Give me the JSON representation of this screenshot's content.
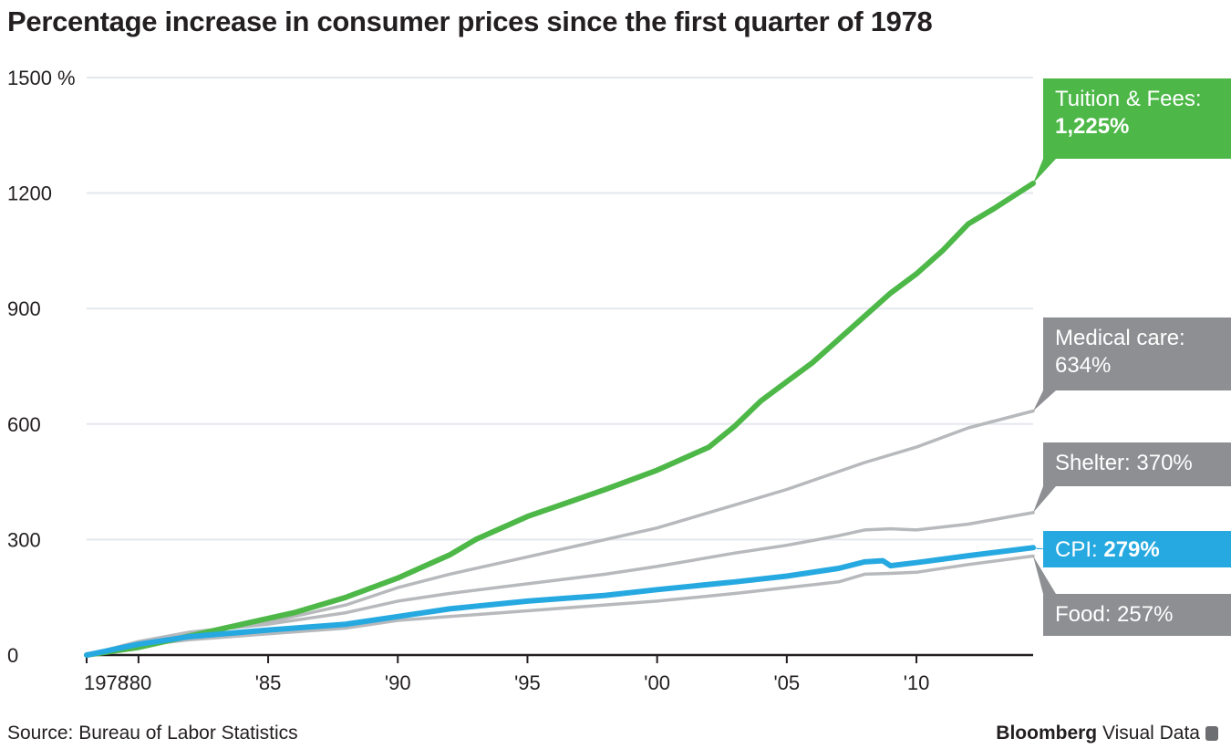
{
  "header": {
    "title": "Percentage increase in consumer prices since the first quarter of 1978"
  },
  "footer": {
    "source": "Source: Bureau of Labor Statistics",
    "brand_strong": "Bloomberg",
    "brand_rest": " Visual Data"
  },
  "colors": {
    "tuition": "#4db848",
    "cpi": "#26a9e0",
    "gray_series": "#b7b9bc",
    "callout_gray": "#8d8f92",
    "axis": "#231f20",
    "grid": "#e3e8ee"
  },
  "callouts": {
    "tuition": {
      "label": "Tuition & Fees:",
      "value": "1,225%"
    },
    "medical": {
      "label": "Medical care:",
      "value": "634%"
    },
    "shelter": {
      "label": "Shelter: ",
      "value": "370%"
    },
    "cpi": {
      "label": "CPI: ",
      "value": "279%"
    },
    "food": {
      "label": "Food: ",
      "value": "257%"
    }
  },
  "chart_data": {
    "type": "line",
    "title": "Percentage increase in consumer prices since the first quarter of 1978",
    "xlabel": "",
    "ylabel": "",
    "xlim": [
      1978,
      2014.5
    ],
    "ylim": [
      0,
      1500
    ],
    "grid": "horizontal",
    "x_ticks": [
      1978,
      1980,
      1985,
      1990,
      1995,
      2000,
      2005,
      2010
    ],
    "x_tick_labels": [
      "1978",
      "'80",
      "'85",
      "'90",
      "'95",
      "'00",
      "'05",
      "'10"
    ],
    "y_ticks": [
      0,
      300,
      600,
      900,
      1200,
      1500
    ],
    "y_tick_labels": [
      "0",
      "300",
      "600",
      "900",
      "1200",
      "1500 %"
    ],
    "series": [
      {
        "name": "Tuition & Fees",
        "color": "#4db848",
        "x": [
          1978,
          1980,
          1982,
          1984,
          1986,
          1988,
          1990,
          1991,
          1992,
          1993,
          1995,
          1998,
          2000,
          2002,
          2003,
          2004,
          2005,
          2006,
          2007,
          2008,
          2009,
          2010,
          2011,
          2012,
          2013,
          2014.5
        ],
        "y": [
          0,
          20,
          50,
          80,
          110,
          150,
          200,
          230,
          260,
          300,
          360,
          430,
          480,
          540,
          595,
          660,
          710,
          760,
          820,
          880,
          940,
          990,
          1050,
          1120,
          1160,
          1225
        ]
      },
      {
        "name": "Medical care",
        "color": "#b7b9bc",
        "x": [
          1978,
          1980,
          1982,
          1985,
          1988,
          1990,
          1992,
          1995,
          1998,
          2000,
          2003,
          2005,
          2008,
          2010,
          2012,
          2014.5
        ],
        "y": [
          0,
          30,
          55,
          85,
          130,
          175,
          210,
          255,
          300,
          330,
          390,
          430,
          500,
          540,
          590,
          634
        ]
      },
      {
        "name": "Shelter",
        "color": "#b7b9bc",
        "x": [
          1978,
          1980,
          1982,
          1985,
          1988,
          1990,
          1992,
          1995,
          1998,
          2000,
          2003,
          2005,
          2007,
          2008,
          2009,
          2010,
          2012,
          2014.5
        ],
        "y": [
          0,
          35,
          60,
          80,
          110,
          140,
          160,
          185,
          210,
          230,
          265,
          285,
          310,
          325,
          328,
          325,
          340,
          370
        ]
      },
      {
        "name": "CPI",
        "color": "#26a9e0",
        "x": [
          1978,
          1980,
          1982,
          1985,
          1988,
          1990,
          1992,
          1995,
          1998,
          2000,
          2003,
          2005,
          2007,
          2008,
          2008.7,
          2009,
          2010,
          2012,
          2014.5
        ],
        "y": [
          0,
          28,
          48,
          65,
          80,
          100,
          120,
          140,
          155,
          170,
          190,
          205,
          225,
          242,
          245,
          232,
          240,
          258,
          279
        ]
      },
      {
        "name": "Food",
        "color": "#b7b9bc",
        "x": [
          1978,
          1980,
          1982,
          1985,
          1988,
          1990,
          1992,
          1995,
          1998,
          2000,
          2003,
          2005,
          2007,
          2008,
          2009,
          2010,
          2012,
          2014.5
        ],
        "y": [
          0,
          25,
          40,
          55,
          70,
          90,
          100,
          115,
          130,
          140,
          160,
          175,
          190,
          210,
          212,
          215,
          235,
          257
        ]
      }
    ]
  }
}
